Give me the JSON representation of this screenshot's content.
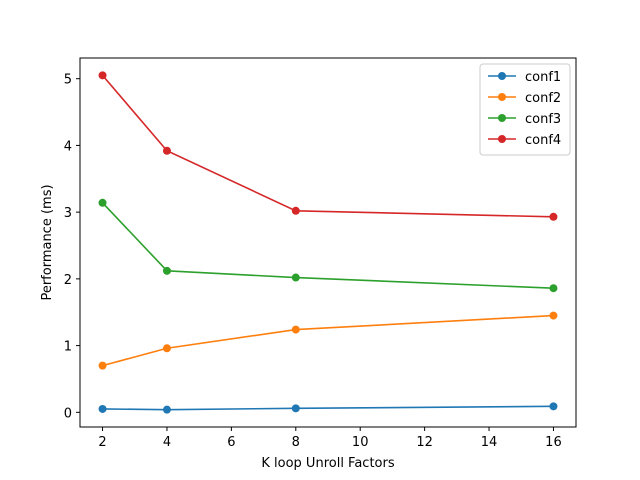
{
  "chart_data": {
    "type": "line",
    "title": "",
    "xlabel": "K loop Unroll Factors",
    "ylabel": "Performance (ms)",
    "xlim": [
      1.3,
      16.7
    ],
    "ylim": [
      -0.22,
      5.31
    ],
    "xticks": [
      2,
      4,
      6,
      8,
      10,
      12,
      14,
      16
    ],
    "yticks": [
      0,
      1,
      2,
      3,
      4,
      5
    ],
    "grid": false,
    "legend_position": "top-right",
    "x": [
      2,
      4,
      8,
      16
    ],
    "series": [
      {
        "name": "conf1",
        "color": "#1f77b4",
        "values": [
          0.05,
          0.04,
          0.06,
          0.09
        ]
      },
      {
        "name": "conf2",
        "color": "#ff7f0e",
        "values": [
          0.7,
          0.96,
          1.24,
          1.45
        ]
      },
      {
        "name": "conf3",
        "color": "#2ca02c",
        "values": [
          3.14,
          2.12,
          2.02,
          1.86
        ]
      },
      {
        "name": "conf4",
        "color": "#d62728",
        "values": [
          5.05,
          3.92,
          3.02,
          2.93
        ]
      }
    ]
  }
}
